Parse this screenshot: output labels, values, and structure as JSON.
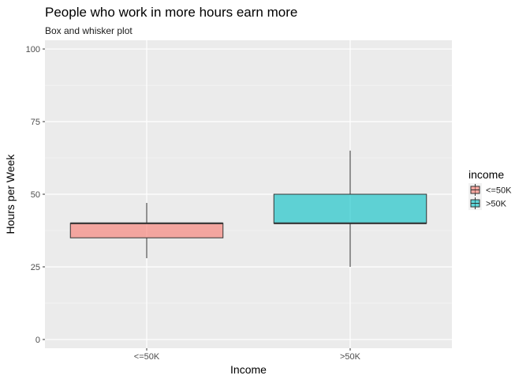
{
  "chart_data": {
    "type": "boxplot",
    "title": "People who work in more hours earn more",
    "subtitle": "Box and whisker plot",
    "xlabel": "Income",
    "ylabel": "Hours per Week",
    "categories": [
      "<=50K",
      ">50K"
    ],
    "ylim": [
      -3,
      103
    ],
    "yticks": [
      0,
      25,
      50,
      75,
      100
    ],
    "grid": true,
    "legend": {
      "title": "income",
      "placement": "right",
      "entries": [
        "<=50K",
        ">50K"
      ]
    },
    "series": [
      {
        "category": "<=50K",
        "whisker_low": 28,
        "q1": 35,
        "median": 40,
        "q3": 40,
        "whisker_high": 47,
        "color": "#F8766D"
      },
      {
        "category": ">50K",
        "whisker_low": 25,
        "q1": 40,
        "median": 40,
        "q3": 50,
        "whisker_high": 65,
        "color": "#00BFC4"
      }
    ]
  },
  "colors": {
    "panel_background": "#EBEBEB",
    "grid_major": "#FFFFFF",
    "box_outline": "#333333"
  }
}
